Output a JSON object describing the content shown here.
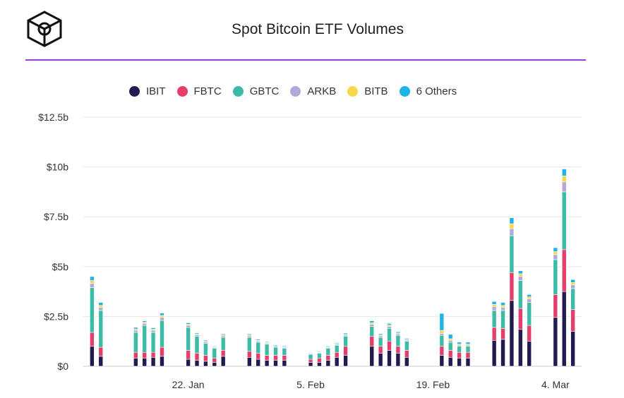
{
  "header": {
    "title": "Spot Bitcoin ETF Volumes"
  },
  "colors": {
    "IBIT": "#231a4f",
    "FBTC": "#e53e6a",
    "GBTC": "#3cbba6",
    "ARKB": "#b5a7d9",
    "BITB": "#f6d84a",
    "6 Others": "#1fb3e6",
    "rule": "#a03cd8"
  },
  "logo_icon": "cube-logo-icon",
  "chart_data": {
    "type": "bar",
    "stacked": true,
    "title": "Spot Bitcoin ETF Volumes",
    "xlabel": "",
    "ylabel": "",
    "ylim": [
      0,
      12.5
    ],
    "yticks": [
      "$0",
      "$2.5b",
      "$5b",
      "$7.5b",
      "$10b",
      "$12.5b"
    ],
    "xticks": [
      "22. Jan",
      "5. Feb",
      "19. Feb",
      "4. Mar"
    ],
    "grid": true,
    "legend_position": "top",
    "categories": [
      "2024-01-11",
      "2024-01-12",
      "2024-01-16",
      "2024-01-17",
      "2024-01-18",
      "2024-01-19",
      "2024-01-22",
      "2024-01-23",
      "2024-01-24",
      "2024-01-25",
      "2024-01-26",
      "2024-01-29",
      "2024-01-30",
      "2024-01-31",
      "2024-02-01",
      "2024-02-02",
      "2024-02-05",
      "2024-02-06",
      "2024-02-07",
      "2024-02-08",
      "2024-02-09",
      "2024-02-12",
      "2024-02-13",
      "2024-02-14",
      "2024-02-15",
      "2024-02-16",
      "2024-02-20",
      "2024-02-21",
      "2024-02-22",
      "2024-02-23",
      "2024-02-26",
      "2024-02-27",
      "2024-02-28",
      "2024-02-29",
      "2024-03-01",
      "2024-03-04",
      "2024-03-05",
      "2024-03-06"
    ],
    "series": [
      {
        "name": "IBIT",
        "values": [
          1.0,
          0.5,
          0.4,
          0.4,
          0.45,
          0.5,
          0.35,
          0.3,
          0.25,
          0.2,
          0.5,
          0.45,
          0.35,
          0.3,
          0.3,
          0.3,
          0.2,
          0.2,
          0.3,
          0.45,
          0.55,
          1.0,
          0.65,
          0.8,
          0.65,
          0.45,
          0.55,
          0.45,
          0.4,
          0.4,
          1.3,
          1.35,
          3.3,
          1.85,
          1.25,
          2.45,
          3.75,
          1.75
        ]
      },
      {
        "name": "FBTC",
        "values": [
          0.7,
          0.45,
          0.3,
          0.3,
          0.25,
          0.45,
          0.45,
          0.35,
          0.3,
          0.2,
          0.3,
          0.3,
          0.3,
          0.25,
          0.25,
          0.25,
          0.15,
          0.2,
          0.25,
          0.25,
          0.45,
          0.5,
          0.35,
          0.45,
          0.35,
          0.35,
          0.45,
          0.35,
          0.3,
          0.3,
          0.65,
          0.55,
          1.4,
          1.05,
          0.8,
          1.15,
          2.1,
          1.1
        ]
      },
      {
        "name": "GBTC",
        "values": [
          2.25,
          1.85,
          1.0,
          1.35,
          1.0,
          1.35,
          1.15,
          0.85,
          0.6,
          0.5,
          0.65,
          0.7,
          0.55,
          0.55,
          0.4,
          0.35,
          0.25,
          0.25,
          0.35,
          0.35,
          0.5,
          0.5,
          0.45,
          0.65,
          0.55,
          0.45,
          0.55,
          0.4,
          0.3,
          0.3,
          0.85,
          0.9,
          1.85,
          1.4,
          1.15,
          1.75,
          2.9,
          1.05
        ]
      },
      {
        "name": "ARKB",
        "values": [
          0.2,
          0.15,
          0.1,
          0.1,
          0.1,
          0.15,
          0.1,
          0.08,
          0.06,
          0.05,
          0.07,
          0.07,
          0.06,
          0.05,
          0.05,
          0.05,
          0.03,
          0.03,
          0.04,
          0.05,
          0.06,
          0.1,
          0.07,
          0.1,
          0.07,
          0.06,
          0.1,
          0.1,
          0.06,
          0.06,
          0.2,
          0.15,
          0.35,
          0.22,
          0.18,
          0.25,
          0.5,
          0.18
        ]
      },
      {
        "name": "BITB",
        "values": [
          0.15,
          0.1,
          0.07,
          0.06,
          0.06,
          0.1,
          0.06,
          0.05,
          0.04,
          0.03,
          0.05,
          0.05,
          0.04,
          0.04,
          0.03,
          0.03,
          0.02,
          0.02,
          0.03,
          0.03,
          0.04,
          0.08,
          0.05,
          0.07,
          0.05,
          0.04,
          0.15,
          0.08,
          0.05,
          0.05,
          0.1,
          0.1,
          0.25,
          0.12,
          0.1,
          0.15,
          0.3,
          0.12
        ]
      },
      {
        "name": "6 Others",
        "values": [
          0.2,
          0.15,
          0.08,
          0.07,
          0.07,
          0.12,
          0.07,
          0.05,
          0.05,
          0.03,
          0.05,
          0.05,
          0.05,
          0.04,
          0.04,
          0.04,
          0.03,
          0.03,
          0.04,
          0.04,
          0.06,
          0.1,
          0.06,
          0.08,
          0.06,
          0.05,
          0.85,
          0.22,
          0.1,
          0.1,
          0.15,
          0.15,
          0.3,
          0.15,
          0.12,
          0.2,
          0.35,
          0.15
        ]
      }
    ]
  }
}
